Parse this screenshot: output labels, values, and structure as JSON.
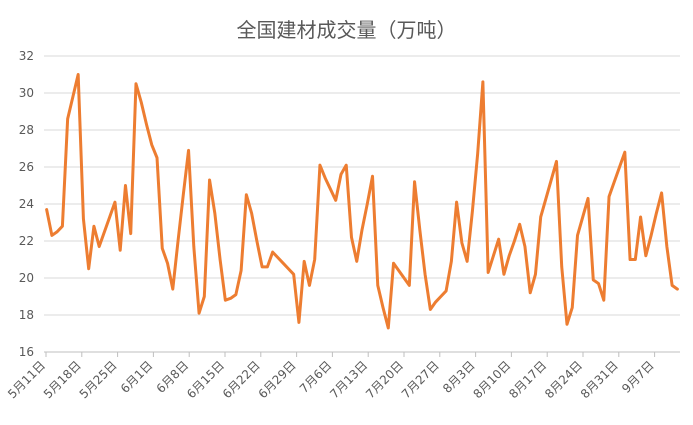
{
  "chart_data": {
    "type": "line",
    "title": "全国建材成交量（万吨）",
    "xlabel": "",
    "ylabel": "",
    "ylim": [
      16,
      32
    ],
    "yticks": [
      16,
      18,
      20,
      22,
      24,
      26,
      28,
      30,
      32
    ],
    "grid": true,
    "legend": "none",
    "color": "#ED7D31",
    "x_tick_labels": [
      "5月11日",
      "5月18日",
      "5月25日",
      "6月1日",
      "6月8日",
      "6月15日",
      "6月22日",
      "6月29日",
      "7月6日",
      "7月13日",
      "7月20日",
      "7月27日",
      "8月3日",
      "8月10日",
      "8月17日",
      "8月24日",
      "8月31日",
      "9月7日"
    ],
    "series": [
      {
        "values": [
          23.7,
          22.3,
          22.5,
          22.8,
          28.6,
          29.8,
          31.0,
          23.2,
          20.5,
          22.8,
          21.7,
          22.5,
          23.3,
          24.1,
          21.5,
          25.0,
          22.4,
          30.5,
          29.5,
          28.3,
          27.2,
          26.5,
          21.6,
          20.8,
          19.4,
          22.0,
          24.5,
          26.9,
          21.7,
          18.1,
          19.0,
          25.3,
          23.5,
          21.0,
          18.8,
          18.9,
          19.1,
          20.4,
          24.5,
          23.5,
          22.0,
          20.6,
          20.6,
          21.4,
          21.1,
          20.8,
          20.5,
          20.2,
          17.6,
          20.9,
          19.6,
          21.0,
          26.1,
          25.4,
          24.8,
          24.2,
          25.6,
          26.1,
          22.2,
          20.9,
          22.6,
          24.0,
          25.5,
          19.6,
          18.4,
          17.3,
          20.8,
          20.4,
          20.0,
          19.6,
          25.2,
          22.6,
          20.2,
          18.3,
          18.7,
          19.0,
          19.3,
          20.9,
          24.1,
          21.9,
          20.9,
          23.6,
          26.7,
          30.6,
          20.3,
          21.2,
          22.1,
          20.2,
          21.2,
          22.0,
          22.9,
          21.7,
          19.2,
          20.2,
          23.3,
          24.3,
          25.3,
          26.3,
          20.6,
          17.5,
          18.4,
          22.3,
          23.3,
          24.3,
          19.9,
          19.7,
          18.8,
          24.4,
          25.2,
          26.0,
          26.8,
          21.0,
          21.0,
          23.3,
          21.2,
          22.3,
          23.5,
          24.6,
          21.7,
          19.6,
          19.4
        ]
      }
    ]
  }
}
